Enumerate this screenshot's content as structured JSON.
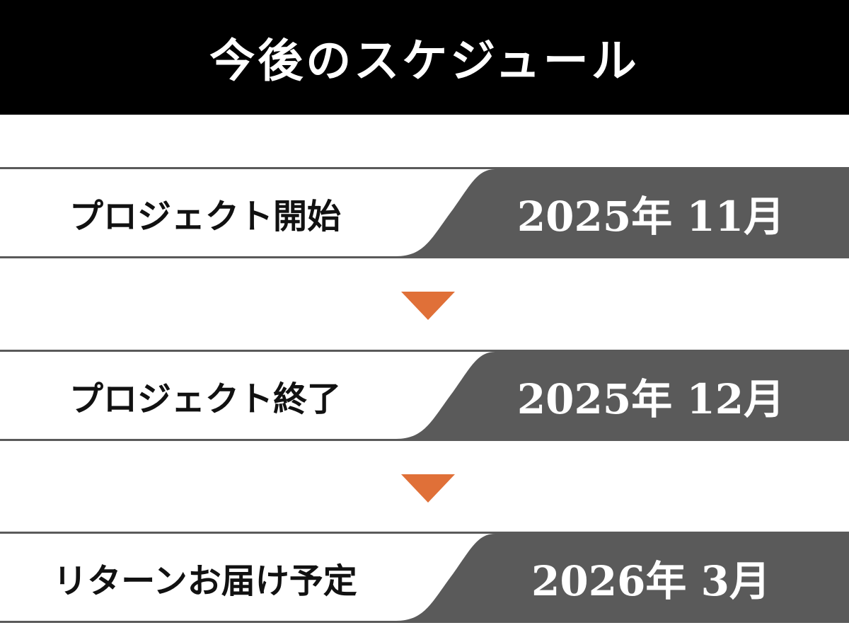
{
  "title": "今後のスケジュール",
  "colors": {
    "header_bg": "#000000",
    "band_dark": "#5a5a5a",
    "arrow": "#e07038",
    "line": "#5a5a5a"
  },
  "milestones": [
    {
      "label": "プロジェクト開始",
      "date": "2025年 11月"
    },
    {
      "label": "プロジェクト終了",
      "date": "2025年 12月"
    },
    {
      "label": "リターンお届け予定",
      "date": "2026年 3月"
    }
  ],
  "arrow_icon": "triangle-down-icon"
}
